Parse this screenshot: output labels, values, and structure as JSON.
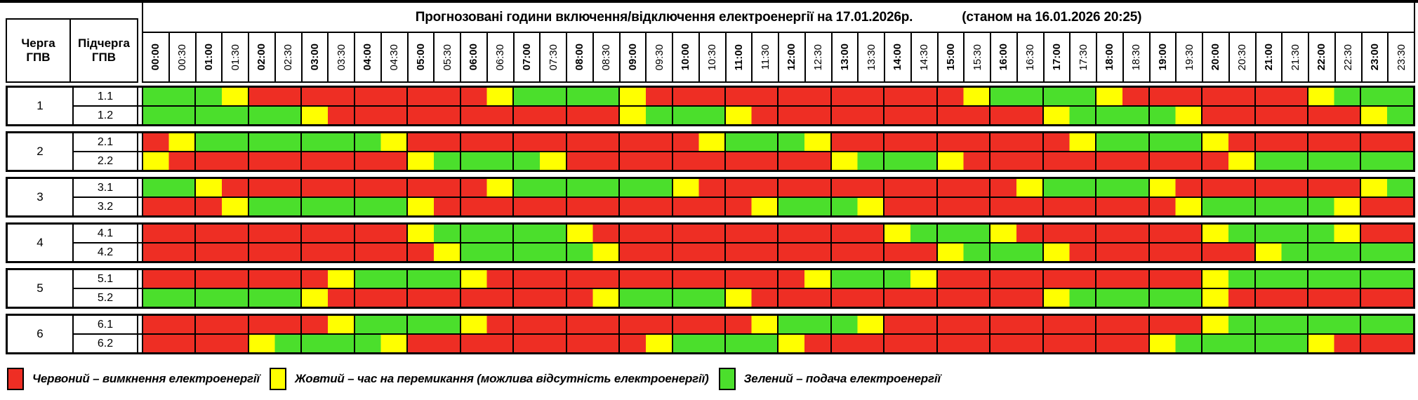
{
  "title": {
    "main": "Прогнозовані години включення/відключення електроенергії на 17.01.2026р.",
    "as_of": "(станом на 16.01.2026 20:25)"
  },
  "headers": {
    "queue": "Черга ГПВ",
    "subqueue": "Підчерга ГПВ"
  },
  "legend": [
    {
      "key": "R",
      "label": "Червоний – вимкнення електроенергії"
    },
    {
      "key": "Y",
      "label": "Жовтий – час на перемикання (можлива відсутність електроенергії)"
    },
    {
      "key": "G",
      "label": "Зелений – подача електроенергії"
    }
  ],
  "chart_data": {
    "type": "heatmap",
    "x": [
      "00:00",
      "00:30",
      "01:00",
      "01:30",
      "02:00",
      "02:30",
      "03:00",
      "03:30",
      "04:00",
      "04:30",
      "05:00",
      "05:30",
      "06:00",
      "06:30",
      "07:00",
      "07:30",
      "08:00",
      "08:30",
      "09:00",
      "09:30",
      "10:00",
      "10:30",
      "11:00",
      "11:30",
      "12:00",
      "12:30",
      "13:00",
      "13:30",
      "14:00",
      "14:30",
      "15:00",
      "15:30",
      "16:00",
      "16:30",
      "17:00",
      "17:30",
      "18:00",
      "18:30",
      "19:00",
      "19:30",
      "20:00",
      "20:30",
      "21:00",
      "21:30",
      "22:00",
      "22:30",
      "23:00",
      "23:30"
    ],
    "slot_minutes": 30,
    "value_meaning": {
      "R": "вимкнення електроенергії",
      "Y": "час на перемикання (можлива відсутність електроенергії)",
      "G": "подача електроенергії"
    },
    "colors": {
      "R": "#ee2e24",
      "Y": "#ffff00",
      "G": "#4bdf2c"
    },
    "rows": [
      {
        "queue": "1",
        "subqueue": "1.1",
        "slots": "GGGYRRRRRRRRRYGGGGYRRRRRRRRRRRRYGGGGYRRRRRRRYGGG"
      },
      {
        "queue": "1",
        "subqueue": "1.2",
        "slots": "GGGGGGYRRRRRRRRRRRYGGGYRRRRRRRRRRRYGGGGYRRRRRRYG"
      },
      {
        "queue": "2",
        "subqueue": "2.1",
        "slots": "RYGGGGGGGYRRRRRRRRRRRYGGGYRRRRRRRRRYGGGGYRRRRRRR"
      },
      {
        "queue": "2",
        "subqueue": "2.2",
        "slots": "YRRRRRRRRRYGGGGYRRRRRRRRRRYGGGYRRRRRRRRRRYGGGGGG"
      },
      {
        "queue": "3",
        "subqueue": "3.1",
        "slots": "GGYRRRRRRRRRRYGGGGGGYRRRRRRRRRRRRYGGGGYRRRRRRRYG"
      },
      {
        "queue": "3",
        "subqueue": "3.2",
        "slots": "RRRYGGGGGGYRRRRRRRRRRRRYGGGYRRRRRRRRRRRYGGGGGYRR"
      },
      {
        "queue": "4",
        "subqueue": "4.1",
        "slots": "RRRRRRRRRRYGGGGGYRRRRRRRRRRRYGGGYRRRRRRRYGGGGYRR"
      },
      {
        "queue": "4",
        "subqueue": "4.2",
        "slots": "RRRRRRRRRRRYGGGGGYRRRRRRRRRRRRYGGGYRRRRRRRYGGGGG"
      },
      {
        "queue": "5",
        "subqueue": "5.1",
        "slots": "RRRRRRRYGGGGYRRRRRRRRRRRRYGGGYRRRRRRRRRRYGGGGGGG"
      },
      {
        "queue": "5",
        "subqueue": "5.2",
        "slots": "GGGGGGYRRRRRRRRRRYGGGGYRRRRRRRRRRRYGGGGGYRRRRRRR"
      },
      {
        "queue": "6",
        "subqueue": "6.1",
        "slots": "RRRRRRRYGGGGYRRRRRRRRRRYGGGYRRRRRRRRRRRRYGGGGGGG"
      },
      {
        "queue": "6",
        "subqueue": "6.2",
        "slots": "RRRRYGGGGYRRRRRRRRRYGGGGYRRRRRRRRRRRRRYGGGGGYRRR"
      }
    ]
  }
}
